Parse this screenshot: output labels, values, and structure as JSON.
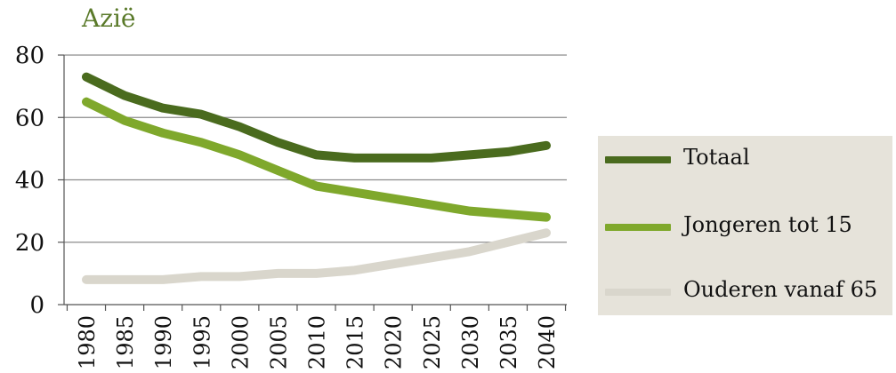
{
  "chart_data": {
    "type": "line",
    "title": "Azië",
    "categories": [
      "1980",
      "1985",
      "1990",
      "1995",
      "2000",
      "2005",
      "2010",
      "2015",
      "2020",
      "2025",
      "2030",
      "2035",
      "2040"
    ],
    "series": [
      {
        "name": "Totaal",
        "color": "#4a6b1e",
        "values": [
          73,
          67,
          63,
          61,
          57,
          52,
          48,
          47,
          47,
          47,
          48,
          49,
          51
        ]
      },
      {
        "name": "Jongeren tot 15",
        "color": "#7fa82c",
        "values": [
          65,
          59,
          55,
          52,
          48,
          43,
          38,
          36,
          34,
          32,
          30,
          29,
          28
        ]
      },
      {
        "name": "Ouderen vanaf 65",
        "color": "#d9d6cc",
        "values": [
          8,
          8,
          8,
          9,
          9,
          10,
          10,
          11,
          13,
          15,
          17,
          20,
          23
        ]
      }
    ],
    "yticks": [
      0,
      20,
      40,
      60,
      80
    ],
    "ylim": [
      0,
      80
    ],
    "grid": true,
    "legend_position": "right"
  }
}
